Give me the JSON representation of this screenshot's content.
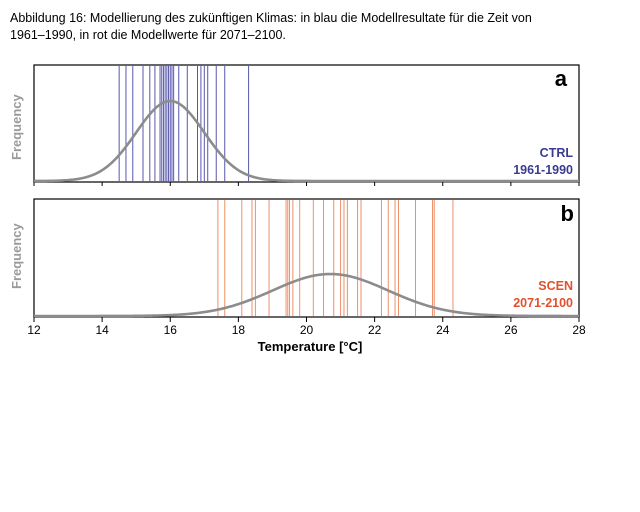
{
  "caption": {
    "line1": "Abbildung 16: Modellierung des zukünftigen Klimas: in blau die Modellresultate für die Zeit von",
    "line2": "1961–1990, in rot die Modellwerte für 2071–2100."
  },
  "chart_data": [
    {
      "type": "line",
      "panel": "a",
      "ylabel": "Frequency",
      "xlim": [
        12,
        28
      ],
      "legend": [
        "CTRL",
        "1961-1990"
      ],
      "legend_placement": "bottom-right",
      "colors": {
        "lines": "#5856ac",
        "curve": "#8c8c8c",
        "legend": "#3b3b91"
      },
      "distribution": {
        "kind": "normal",
        "mean": 16.0,
        "sd": 1.0
      },
      "vertical_lines": [
        14.5,
        14.7,
        14.9,
        15.2,
        15.4,
        15.55,
        15.7,
        15.75,
        15.8,
        15.85,
        15.9,
        15.95,
        16.0,
        16.05,
        16.1,
        16.25,
        16.5,
        16.8,
        16.9,
        17.0,
        17.1,
        17.35,
        17.6,
        18.3
      ]
    },
    {
      "type": "line",
      "panel": "b",
      "ylabel": "Frequency",
      "xlim": [
        12,
        28
      ],
      "legend": [
        "SCEN",
        "2071-2100"
      ],
      "legend_placement": "bottom-right",
      "colors": {
        "lines": "#ef8f68",
        "curve": "#8c8c8c",
        "legend": "#e2502d"
      },
      "distribution": {
        "kind": "normal",
        "mean": 20.7,
        "sd": 1.7
      },
      "vertical_lines": [
        17.4,
        17.6,
        18.1,
        18.4,
        18.5,
        18.9,
        19.4,
        19.45,
        19.5,
        19.6,
        19.8,
        20.2,
        20.5,
        20.8,
        21.0,
        21.1,
        21.2,
        21.5,
        21.6,
        22.2,
        22.4,
        22.6,
        22.7,
        23.2,
        23.7,
        23.75,
        24.3
      ]
    }
  ],
  "x_axis": {
    "ticks": [
      12,
      14,
      16,
      18,
      20,
      22,
      24,
      26,
      28
    ],
    "label": "Temperature [°C]"
  }
}
